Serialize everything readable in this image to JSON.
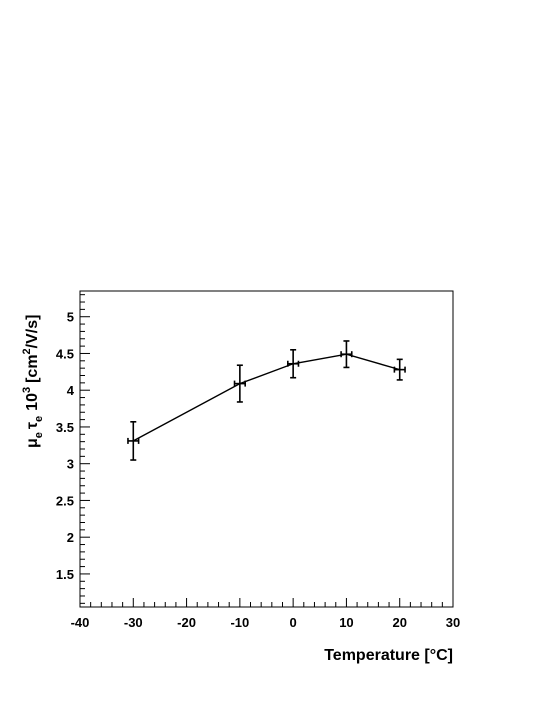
{
  "chart_data": {
    "type": "scatter",
    "title": "",
    "xlabel": "Temperature [°C]",
    "ylabel": {
      "mu": "μ",
      "mu_sub": "e",
      "tau": "τ",
      "tau_sub": "e",
      "base": "10",
      "exp": "3",
      "unit_pre": "[cm",
      "unit_sup": "2",
      "unit_post": "/V/s]"
    },
    "xlim": [
      -40,
      30
    ],
    "ylim": [
      1.05,
      5.35
    ],
    "x_ticks": [
      -40,
      -30,
      -20,
      -10,
      0,
      10,
      20,
      30
    ],
    "x_tick_labels": [
      "-40",
      "-30",
      "-20",
      "-10",
      "0",
      "10",
      "20",
      "30"
    ],
    "y_ticks": [
      1.5,
      2,
      2.5,
      3,
      3.5,
      4,
      4.5,
      5
    ],
    "y_tick_labels": [
      "1.5",
      "2",
      "2.5",
      "3",
      "3.5",
      "4",
      "4.5",
      "5"
    ],
    "grid": false,
    "series": [
      {
        "x": [
          -30,
          -10,
          0,
          10,
          20
        ],
        "y": [
          3.31,
          4.09,
          4.36,
          4.49,
          4.28
        ],
        "y_err": [
          0.26,
          0.25,
          0.19,
          0.18,
          0.14
        ],
        "x_err": [
          1,
          1,
          1,
          1,
          1
        ],
        "color": "#000000"
      }
    ]
  }
}
